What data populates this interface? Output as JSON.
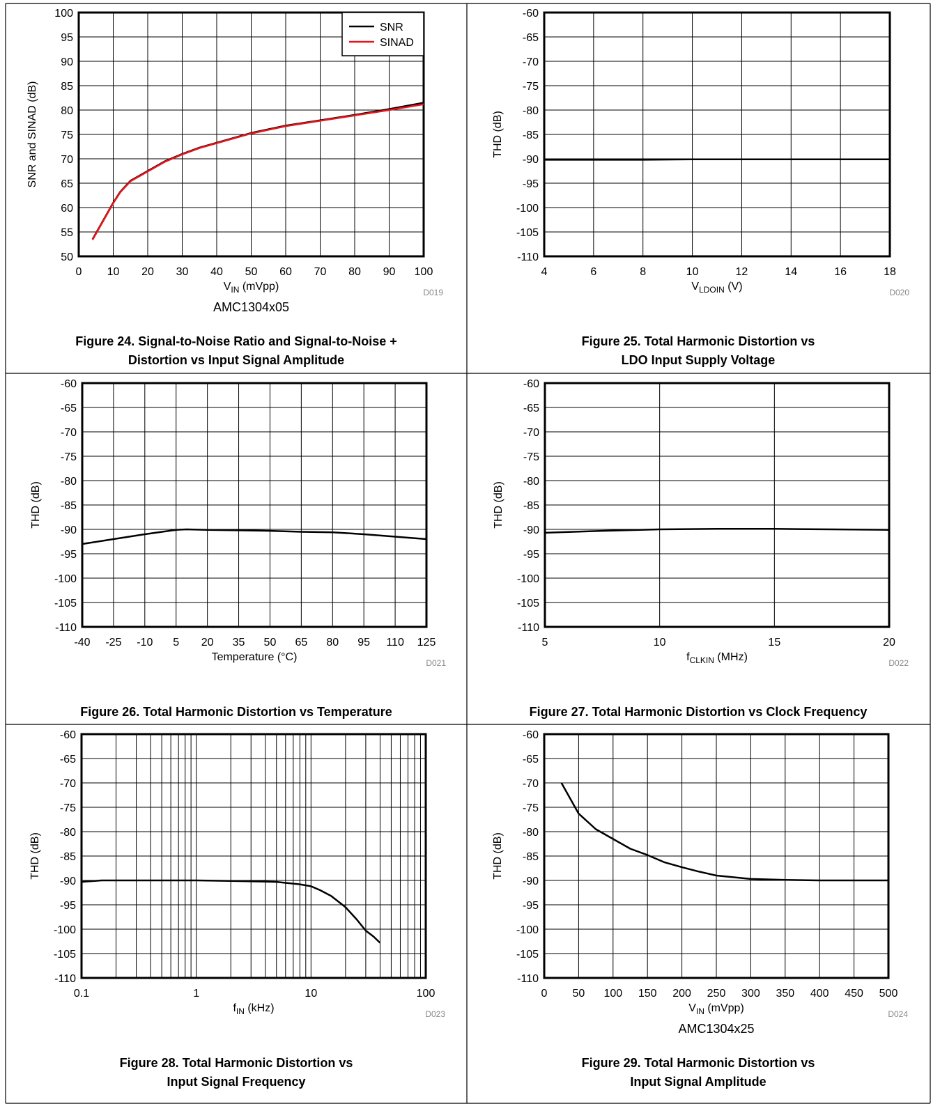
{
  "chart_data": [
    {
      "type": "line",
      "xlim": [
        0,
        100
      ],
      "ylim": [
        50,
        100
      ],
      "xticks": [
        0,
        10,
        20,
        30,
        40,
        50,
        60,
        70,
        80,
        90,
        100
      ],
      "yticks": [
        50,
        55,
        60,
        65,
        70,
        75,
        80,
        85,
        90,
        95,
        100
      ],
      "grid": true,
      "legend": "top-right",
      "x_label": [
        "V",
        "IN",
        " (mVpp)"
      ],
      "y_label": "SNR and SINAD (dB)",
      "note": "D019",
      "subtitle": "AMC1304x05",
      "caption": [
        "Figure 24. Signal-to-Noise Ratio and Signal-to-Noise +",
        "Distortion vs Input Signal Amplitude"
      ],
      "x": [
        4,
        6,
        8,
        10,
        12,
        15,
        20,
        25,
        30,
        35,
        40,
        50,
        60,
        70,
        80,
        90,
        100
      ],
      "series": [
        {
          "name": "SNR",
          "color": "#000000",
          "values": [
            53.5,
            56,
            58.5,
            61,
            63.2,
            65.5,
            67.5,
            69.5,
            71,
            72.3,
            73.3,
            75.3,
            76.8,
            77.9,
            79,
            80.2,
            81.5
          ]
        },
        {
          "name": "SINAD",
          "color": "#e8141b",
          "values": [
            53.4,
            55.9,
            58.4,
            60.9,
            63.1,
            65.4,
            67.4,
            69.4,
            70.9,
            72.2,
            73.2,
            75.2,
            76.7,
            77.8,
            78.9,
            80,
            81.2
          ]
        }
      ]
    },
    {
      "type": "line",
      "xlim": [
        4,
        18
      ],
      "ylim": [
        -110,
        -60
      ],
      "xticks": [
        4,
        6,
        8,
        10,
        12,
        14,
        16,
        18
      ],
      "yticks": [
        -110,
        -105,
        -100,
        -95,
        -90,
        -85,
        -80,
        -75,
        -70,
        -65,
        -60
      ],
      "grid": true,
      "x_label": [
        "V",
        "LDOIN",
        " (V)"
      ],
      "y_label": "THD (dB)",
      "note": "D020",
      "caption": [
        "Figure 25. Total Harmonic Distortion vs",
        "LDO Input Supply Voltage"
      ],
      "x": [
        4,
        6,
        8,
        10,
        12,
        14,
        16,
        18
      ],
      "series": [
        {
          "color": "#000000",
          "values": [
            -90.2,
            -90.2,
            -90.2,
            -90.1,
            -90.1,
            -90.1,
            -90.1,
            -90.1
          ]
        }
      ]
    },
    {
      "type": "line",
      "xlim": [
        -40,
        125
      ],
      "ylim": [
        -110,
        -60
      ],
      "xticks": [
        -40,
        -25,
        -10,
        5,
        20,
        35,
        50,
        65,
        80,
        95,
        110,
        125
      ],
      "yticks": [
        -110,
        -105,
        -100,
        -95,
        -90,
        -85,
        -80,
        -75,
        -70,
        -65,
        -60
      ],
      "grid": true,
      "x_label": [
        "Temperature (°C)"
      ],
      "y_label": "THD (dB)",
      "note": "D021",
      "caption": [
        "Figure 26. Total Harmonic Distortion vs Temperature"
      ],
      "x": [
        -40,
        -25,
        -10,
        5,
        10,
        20,
        35,
        50,
        65,
        80,
        95,
        110,
        125
      ],
      "series": [
        {
          "color": "#000000",
          "values": [
            -93,
            -92,
            -91,
            -90.1,
            -90,
            -90.1,
            -90.2,
            -90.3,
            -90.5,
            -90.6,
            -91,
            -91.5,
            -92
          ]
        }
      ]
    },
    {
      "type": "line",
      "xlim": [
        5,
        20
      ],
      "ylim": [
        -110,
        -60
      ],
      "xticks": [
        5,
        10,
        15,
        20
      ],
      "yticks": [
        -110,
        -105,
        -100,
        -95,
        -90,
        -85,
        -80,
        -75,
        -70,
        -65,
        -60
      ],
      "grid": true,
      "x_label": [
        "f",
        "CLKIN",
        " (MHz)"
      ],
      "y_label": "THD (dB)",
      "note": "D022",
      "caption": [
        "Figure 27. Total Harmonic Distortion vs Clock Frequency"
      ],
      "x": [
        5,
        7.5,
        10,
        12.5,
        15,
        17.5,
        20
      ],
      "series": [
        {
          "color": "#000000",
          "values": [
            -90.7,
            -90.3,
            -90,
            -89.9,
            -89.9,
            -90,
            -90.1
          ]
        }
      ]
    },
    {
      "type": "line",
      "xlim": [
        0.1,
        100
      ],
      "ylim": [
        -110,
        -60
      ],
      "log_x": true,
      "xticks": [
        0.1,
        1,
        10,
        100
      ],
      "x_minor_grid": [
        0.2,
        0.3,
        0.4,
        0.5,
        0.6,
        0.7,
        0.8,
        0.9,
        2,
        3,
        4,
        5,
        6,
        7,
        8,
        9,
        20,
        30,
        40,
        50,
        60,
        70,
        80,
        90
      ],
      "yticks": [
        -110,
        -105,
        -100,
        -95,
        -90,
        -85,
        -80,
        -75,
        -70,
        -65,
        -60
      ],
      "grid": true,
      "x_label": [
        "f",
        "IN",
        " (kHz)"
      ],
      "y_label": "THD (dB)",
      "note": "D023",
      "caption": [
        "Figure 28. Total Harmonic Distortion vs",
        "Input Signal Frequency"
      ],
      "x": [
        0.1,
        0.15,
        0.2,
        0.5,
        1,
        2,
        5,
        8,
        10,
        12,
        15,
        20,
        25,
        30,
        35,
        40
      ],
      "series": [
        {
          "color": "#000000",
          "values": [
            -90.3,
            -90,
            -90,
            -90,
            -90,
            -90.1,
            -90.3,
            -90.8,
            -91.2,
            -92,
            -93.2,
            -95.5,
            -98,
            -100.3,
            -101.5,
            -102.8
          ]
        }
      ]
    },
    {
      "type": "line",
      "xlim": [
        0,
        500
      ],
      "ylim": [
        -110,
        -60
      ],
      "xticks": [
        0,
        50,
        100,
        150,
        200,
        250,
        300,
        350,
        400,
        450,
        500
      ],
      "yticks": [
        -110,
        -105,
        -100,
        -95,
        -90,
        -85,
        -80,
        -75,
        -70,
        -65,
        -60
      ],
      "grid": true,
      "x_label": [
        "V",
        "IN",
        " (mVpp)"
      ],
      "y_label": "THD (dB)",
      "note": "D024",
      "subtitle": "AMC1304x25",
      "caption": [
        "Figure 29. Total Harmonic Distortion vs",
        "Input Signal Amplitude"
      ],
      "x": [
        25,
        50,
        75,
        100,
        125,
        150,
        175,
        200,
        225,
        250,
        300,
        350,
        400,
        450,
        500
      ],
      "series": [
        {
          "color": "#000000",
          "values": [
            -70,
            -76.3,
            -79.5,
            -81.5,
            -83.5,
            -84.8,
            -86.3,
            -87.3,
            -88.2,
            -89,
            -89.7,
            -89.9,
            -90,
            -90,
            -90
          ]
        }
      ]
    }
  ]
}
